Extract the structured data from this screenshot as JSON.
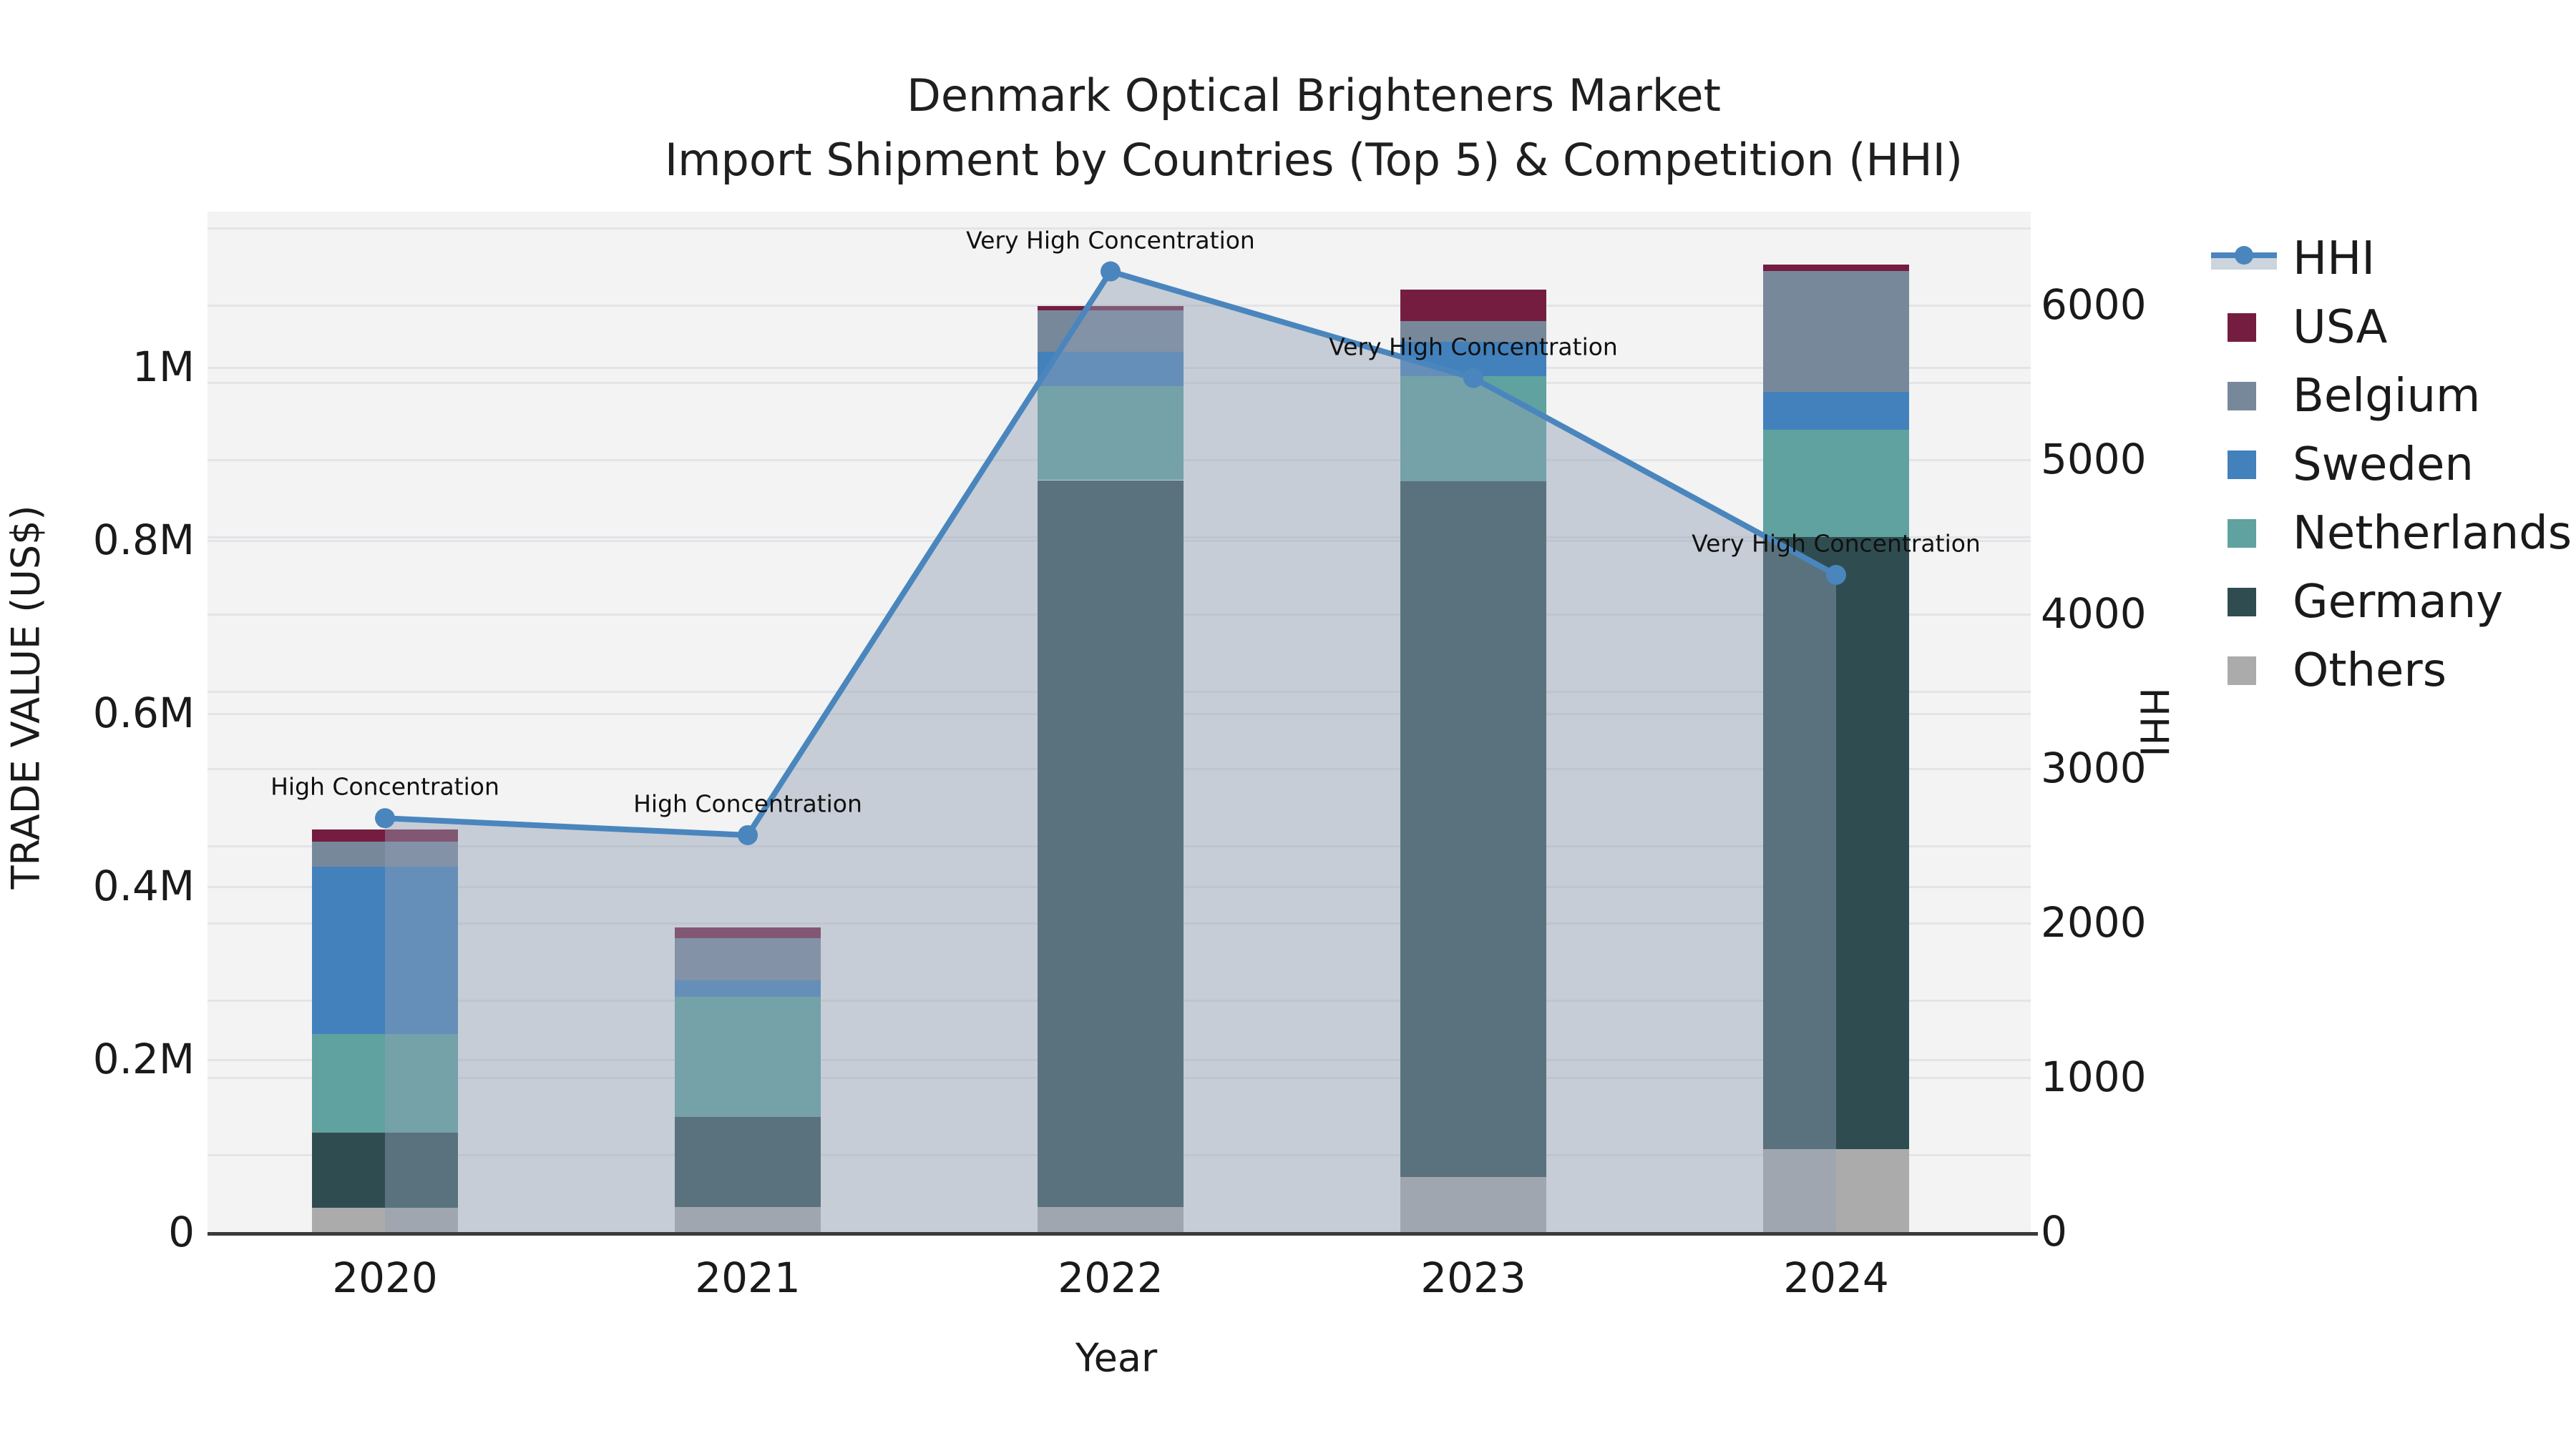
{
  "title": {
    "line1": "Denmark Optical Brighteners Market",
    "line2": "Import Shipment by Countries (Top 5) & Competition (HHI)"
  },
  "axes": {
    "x": {
      "label": "Year",
      "ticks": [
        "2020",
        "2021",
        "2022",
        "2023",
        "2024"
      ]
    },
    "y_left": {
      "label": "TRADE VALUE (US$)",
      "ticks": [
        {
          "label": "0",
          "value": 0
        },
        {
          "label": "0.2M",
          "value": 200000
        },
        {
          "label": "0.4M",
          "value": 400000
        },
        {
          "label": "0.6M",
          "value": 600000
        },
        {
          "label": "0.8M",
          "value": 800000
        },
        {
          "label": "1M",
          "value": 1000000
        }
      ]
    },
    "y_right": {
      "label": "HHI",
      "ticks": [
        {
          "label": "0",
          "value": 0
        },
        {
          "label": "1000",
          "value": 1000
        },
        {
          "label": "2000",
          "value": 2000
        },
        {
          "label": "3000",
          "value": 3000
        },
        {
          "label": "4000",
          "value": 4000
        },
        {
          "label": "5000",
          "value": 5000
        },
        {
          "label": "6000",
          "value": 6000
        }
      ]
    }
  },
  "legend": {
    "items": [
      {
        "label": "HHI",
        "symbol": "line",
        "color": "#4a86bd"
      },
      {
        "label": "USA",
        "symbol": "square",
        "color": "#751d40"
      },
      {
        "label": "Belgium",
        "symbol": "square",
        "color": "#78889b"
      },
      {
        "label": "Sweden",
        "symbol": "square",
        "color": "#4281bc"
      },
      {
        "label": "Netherlands",
        "symbol": "square",
        "color": "#5fa2a0"
      },
      {
        "label": "Germany",
        "symbol": "square",
        "color": "#2f4d50"
      },
      {
        "label": "Others",
        "symbol": "square",
        "color": "#ababab"
      }
    ]
  },
  "chart_data": {
    "type": "combo-stacked-bar-line",
    "title": "Denmark Optical Brighteners Market — Import Shipment by Countries (Top 5) & Competition (HHI)",
    "categories": [
      "2020",
      "2021",
      "2022",
      "2023",
      "2024"
    ],
    "xlabel": "Year",
    "ylabel_left": "TRADE VALUE (US$)",
    "ylabel_right": "HHI",
    "y_left_range": [
      0,
      1180000
    ],
    "y_right_range": [
      0,
      6600
    ],
    "grid": "faint horizontal gridlines on light gray plot background",
    "legend_position": "outside top-right",
    "bar_unit": "US$",
    "stack_order_bottom_to_top": [
      "Others",
      "Germany",
      "Netherlands",
      "Sweden",
      "Belgium",
      "USA"
    ],
    "series": [
      {
        "name": "USA",
        "color": "#751d40",
        "values": [
          14000,
          12000,
          5000,
          36000,
          7000
        ]
      },
      {
        "name": "Belgium",
        "color": "#78889b",
        "values": [
          29000,
          49000,
          48000,
          24000,
          140000
        ]
      },
      {
        "name": "Sweden",
        "color": "#4281bc",
        "values": [
          193000,
          19000,
          39000,
          40000,
          44000
        ]
      },
      {
        "name": "Netherlands",
        "color": "#5fa2a0",
        "values": [
          114000,
          139000,
          109000,
          121000,
          124000
        ]
      },
      {
        "name": "Germany",
        "color": "#2f4d50",
        "values": [
          87000,
          104000,
          840000,
          804000,
          707000
        ]
      },
      {
        "name": "Others",
        "color": "#ababab",
        "values": [
          28000,
          29000,
          29000,
          64000,
          96000
        ]
      }
    ],
    "bar_totals": [
      465000,
      352000,
      1070000,
      1089000,
      1118000
    ],
    "line_series": {
      "name": "HHI",
      "color": "#4a86bd",
      "area_color": "rgba(145,160,180,0.45)",
      "values": [
        2675,
        2565,
        6215,
        5525,
        4250
      ]
    },
    "annotations": [
      {
        "category": "2020",
        "text": "High Concentration"
      },
      {
        "category": "2021",
        "text": "High Concentration"
      },
      {
        "category": "2022",
        "text": "Very High Concentration"
      },
      {
        "category": "2023",
        "text": "Very High Concentration"
      },
      {
        "category": "2024",
        "text": "Very High Concentration"
      }
    ]
  }
}
